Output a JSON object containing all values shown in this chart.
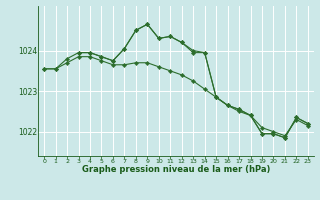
{
  "background_color": "#cce8e8",
  "grid_color": "#ffffff",
  "line_color": "#2d6e2d",
  "marker_color": "#2d6e2d",
  "xlabel": "Graphe pression niveau de la mer (hPa)",
  "xlim": [
    -0.5,
    23.5
  ],
  "ylim": [
    1021.4,
    1025.1
  ],
  "yticks": [
    1022,
    1023,
    1024
  ],
  "xticks": [
    0,
    1,
    2,
    3,
    4,
    5,
    6,
    7,
    8,
    9,
    10,
    11,
    12,
    13,
    14,
    15,
    16,
    17,
    18,
    19,
    20,
    21,
    22,
    23
  ],
  "series": [
    {
      "x": [
        0,
        1,
        2,
        3,
        4,
        5,
        6,
        7,
        8,
        9,
        10,
        11,
        12,
        13,
        14,
        15,
        16,
        17,
        18,
        19,
        20,
        21,
        22,
        23
      ],
      "y": [
        1023.55,
        1023.55,
        1023.8,
        1023.95,
        1023.95,
        1023.85,
        1023.75,
        1024.05,
        1024.5,
        1024.65,
        1024.3,
        1024.35,
        1024.2,
        1024.0,
        1023.95,
        1022.85,
        1022.65,
        1022.55,
        1022.4,
        1021.95,
        1021.95,
        1021.85,
        1022.35,
        1022.2
      ]
    },
    {
      "x": [
        0,
        1,
        2,
        3,
        4,
        5,
        6,
        7,
        8,
        9,
        10,
        11,
        12,
        13,
        14,
        15,
        16,
        17,
        18,
        19,
        20,
        21,
        22,
        23
      ],
      "y": [
        1023.55,
        1023.55,
        1023.7,
        1023.85,
        1023.85,
        1023.75,
        1023.65,
        1023.65,
        1023.7,
        1023.7,
        1023.6,
        1023.5,
        1023.4,
        1023.25,
        1023.05,
        1022.85,
        1022.65,
        1022.5,
        1022.4,
        1022.1,
        1022.0,
        1021.9,
        1022.3,
        1022.15
      ]
    },
    {
      "x": [
        3,
        4,
        5,
        6,
        7,
        8,
        9,
        10,
        11,
        12,
        13,
        14,
        15,
        16,
        17,
        18,
        19,
        20,
        21,
        22,
        23
      ],
      "y": [
        1023.95,
        1023.95,
        1023.85,
        1023.75,
        1024.05,
        1024.5,
        1024.65,
        1024.3,
        1024.35,
        1024.2,
        1023.95,
        1023.95,
        1022.85,
        1022.65,
        1022.55,
        1022.4,
        1021.95,
        1021.95,
        1021.85,
        1022.35,
        1022.2
      ]
    }
  ]
}
